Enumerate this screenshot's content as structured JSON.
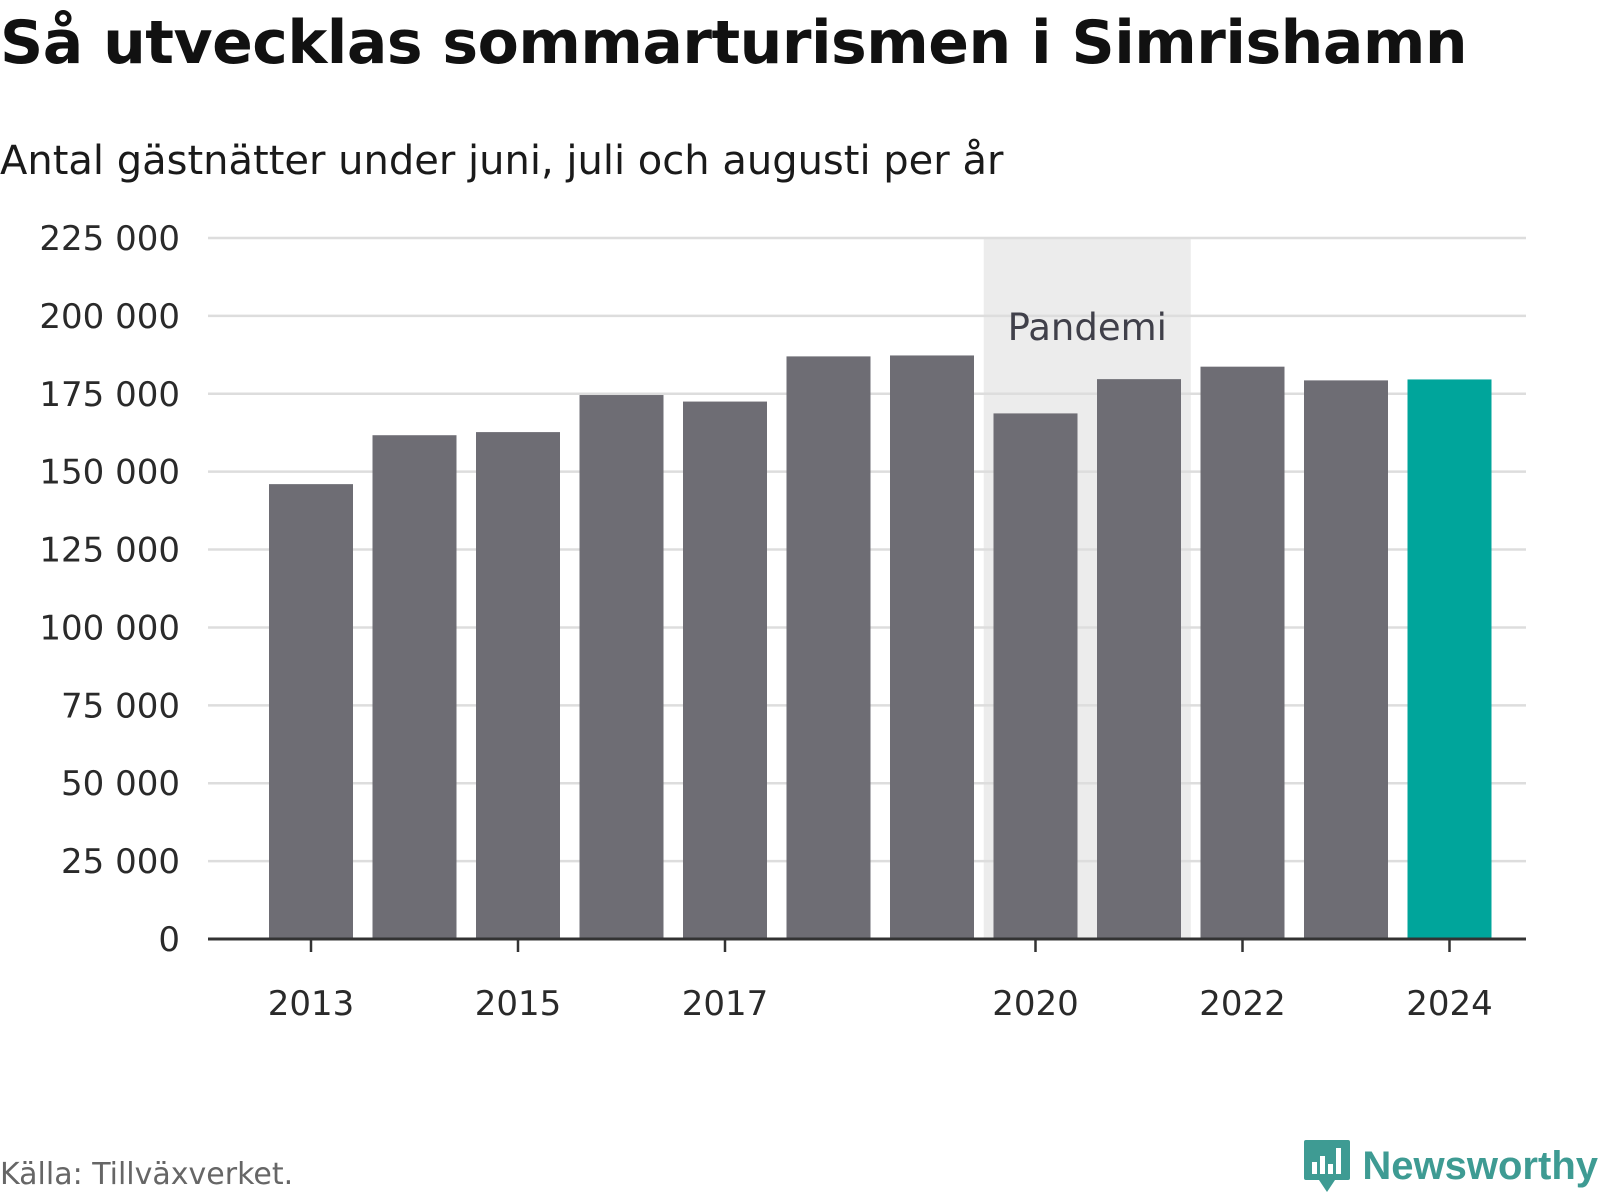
{
  "title": "Så utvecklas sommarturismen i Simrishamn",
  "subtitle": "Antal gästnätter under juni, juli och augusti per år",
  "source": "Källa: Tillväxverket.",
  "brand": {
    "name": "Newsworthy",
    "icon": "newsworthy-logo-icon"
  },
  "colors": {
    "bar": "#6e6d74",
    "highlight": "#00a59b",
    "shade": "#ececec",
    "grid": "#dddddd",
    "axis": "#333333",
    "brand": "#3e9b93"
  },
  "chart_data": {
    "type": "bar",
    "categories": [
      "2013",
      "2014",
      "2015",
      "2016",
      "2017",
      "2018",
      "2019",
      "2020",
      "2021",
      "2022",
      "2023",
      "2024"
    ],
    "values": [
      146000,
      161700,
      162700,
      174600,
      172500,
      187000,
      187300,
      168700,
      179700,
      183700,
      179300,
      179600
    ],
    "highlight_category": "2024",
    "xtick_labels": [
      "2013",
      "2015",
      "2017",
      "2020",
      "2022",
      "2024"
    ],
    "yticks": [
      0,
      25000,
      50000,
      75000,
      100000,
      125000,
      150000,
      175000,
      200000,
      225000
    ],
    "ytick_labels": [
      "0",
      "25 000",
      "50 000",
      "75 000",
      "100 000",
      "125 000",
      "150 000",
      "175 000",
      "200 000",
      "225 000"
    ],
    "ylim": [
      0,
      225000
    ],
    "annotation": {
      "text": "Pandemi",
      "from": "2020",
      "to": "2021"
    },
    "grid": true,
    "legend": "none"
  }
}
